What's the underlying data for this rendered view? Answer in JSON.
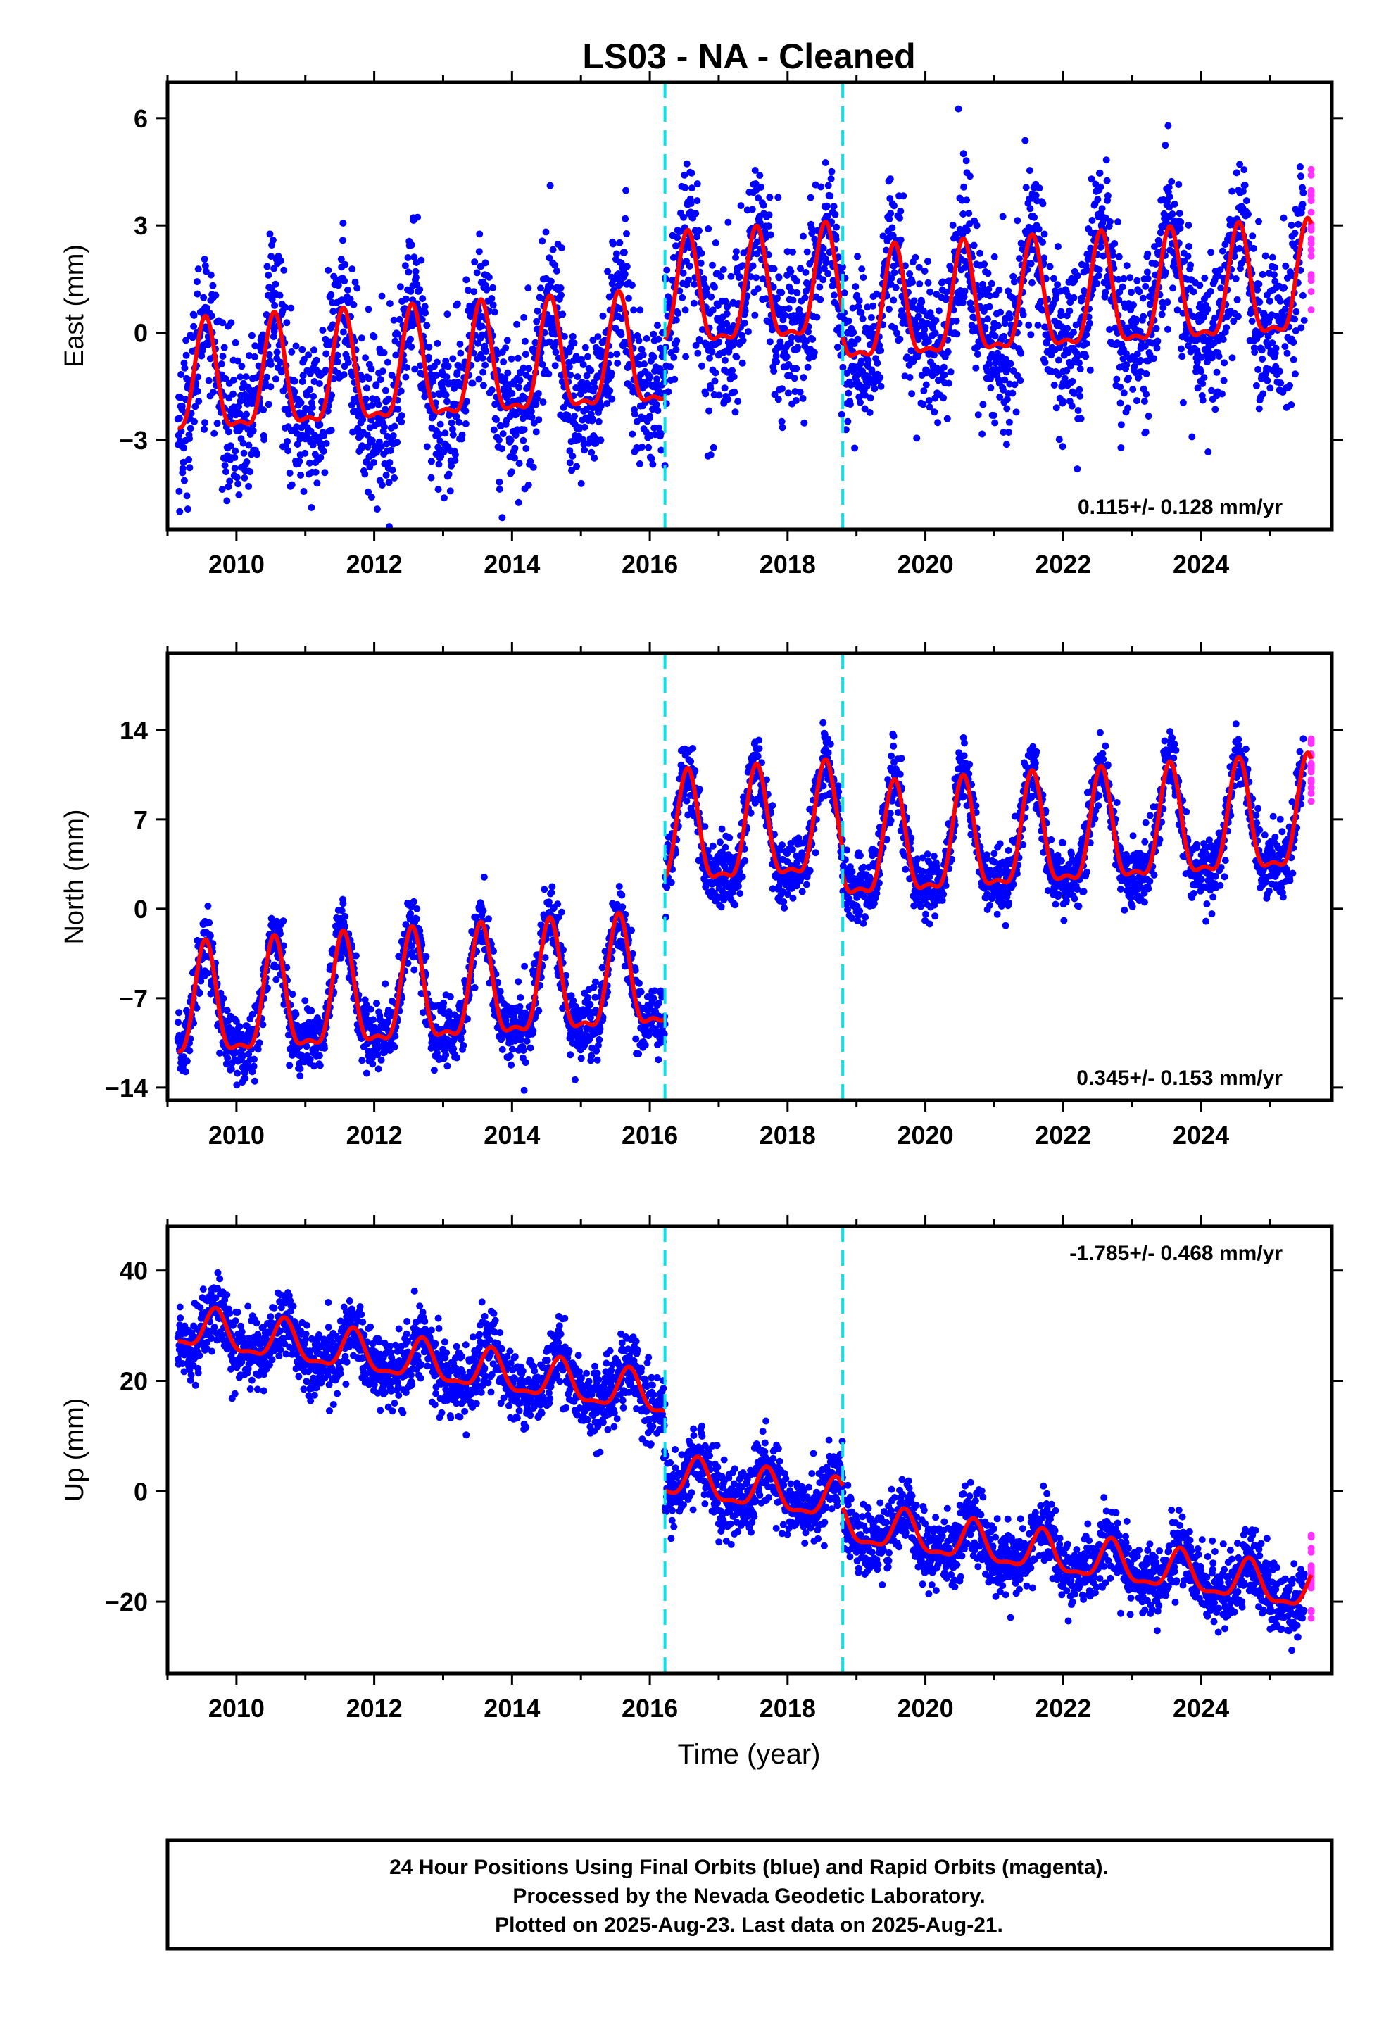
{
  "chart_data": {
    "type": "scatter",
    "title": "LS03  - NA - Cleaned",
    "xlabel": "Time (year)",
    "xlim": [
      2009.0,
      2025.9
    ],
    "xticks": [
      "2010",
      "2012",
      "2014",
      "2016",
      "2018",
      "2020",
      "2022",
      "2024"
    ],
    "offsets": [
      2016.22,
      2018.8
    ],
    "colors": {
      "final": "#0000ff",
      "rapid": "#ff33ff",
      "model": "#ff0000",
      "offset": "#00e5ee"
    },
    "panels": [
      {
        "name": "east",
        "ylabel": "East (mm)",
        "ylim": [
          -5.5,
          7.0
        ],
        "yticks": [
          -3,
          0,
          3,
          6
        ],
        "ytick_labels": [
          "−3",
          "0",
          "3",
          "6"
        ],
        "rate_text": "0.115+/- 0.128 mm/yr",
        "rate_position": "bottom-right",
        "model": {
          "series": "East",
          "trend": 0.115,
          "amp": 1.5,
          "phase": 0.55,
          "seg_offsets": [
            -0.7,
            0.9,
            0.2
          ]
        },
        "scatter_sd": 1.1
      },
      {
        "name": "north",
        "ylabel": "North (mm)",
        "ylim": [
          -15,
          20
        ],
        "yticks": [
          -14,
          -7,
          0,
          7,
          14
        ],
        "ytick_labels": [
          "−14",
          "−7",
          "0",
          "7",
          "14"
        ],
        "rate_text": "0.345+/- 0.153 mm/yr",
        "rate_position": "bottom-right",
        "model": {
          "series": "North",
          "trend": 0.345,
          "amp": 4.2,
          "phase": 0.55,
          "seg_offsets": [
            -5.5,
            5.5,
            3.6
          ]
        },
        "scatter_sd": 1.3
      },
      {
        "name": "up",
        "ylabel": "Up (mm)",
        "ylim": [
          -33,
          48
        ],
        "yticks": [
          -20,
          0,
          20,
          40
        ],
        "ytick_labels": [
          "−20",
          "0",
          "20",
          "40"
        ],
        "rate_text": "-1.785+/- 0.468 mm/yr",
        "rate_position": "top-right",
        "model": {
          "series": "Up",
          "trend": -1.785,
          "amp": 3.5,
          "phase": 0.7,
          "seg_offsets": [
            15.5,
            1.0,
            -3.0
          ]
        },
        "scatter_sd": 3.2
      }
    ],
    "footnote": [
      "24 Hour Positions Using Final Orbits (blue) and Rapid Orbits (magenta).",
      "Processed by the Nevada Geodetic Laboratory.",
      "Plotted on 2025-Aug-23. Last data on 2025-Aug-21."
    ]
  }
}
